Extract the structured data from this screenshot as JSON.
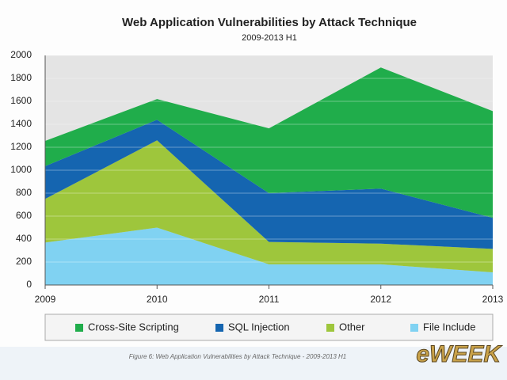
{
  "chart_data": {
    "type": "stacked_area",
    "title": "Web Application Vulnerabilities by Attack Technique",
    "subtitle": "2009-2013 H1",
    "x": [
      2009,
      2010,
      2011,
      2012,
      2013
    ],
    "xlim": [
      2009,
      2013
    ],
    "xticks": [
      2009,
      2010,
      2011,
      2012,
      2013
    ],
    "ylim": [
      0,
      2000
    ],
    "yticks": [
      0,
      200,
      400,
      600,
      800,
      1000,
      1200,
      1400,
      1600,
      1800,
      2000
    ],
    "grid": true,
    "legend": "bottom",
    "series": [
      {
        "name": "Cross-Site Scripting",
        "color": "#20ad4b",
        "values": [
          220,
          180,
          565,
          1055,
          930
        ]
      },
      {
        "name": "SQL Injection",
        "color": "#1565b0",
        "values": [
          285,
          180,
          425,
          480,
          270
        ]
      },
      {
        "name": "Other",
        "color": "#9ec63c",
        "values": [
          380,
          760,
          195,
          180,
          205
        ]
      },
      {
        "name": "File Include",
        "color": "#80d2f2",
        "values": [
          370,
          500,
          180,
          180,
          110
        ]
      }
    ]
  },
  "caption": "Figure 6: Web Application Vulnerabilities by Attack Technique - 2009-2013 H1",
  "logo": "eWEEK"
}
